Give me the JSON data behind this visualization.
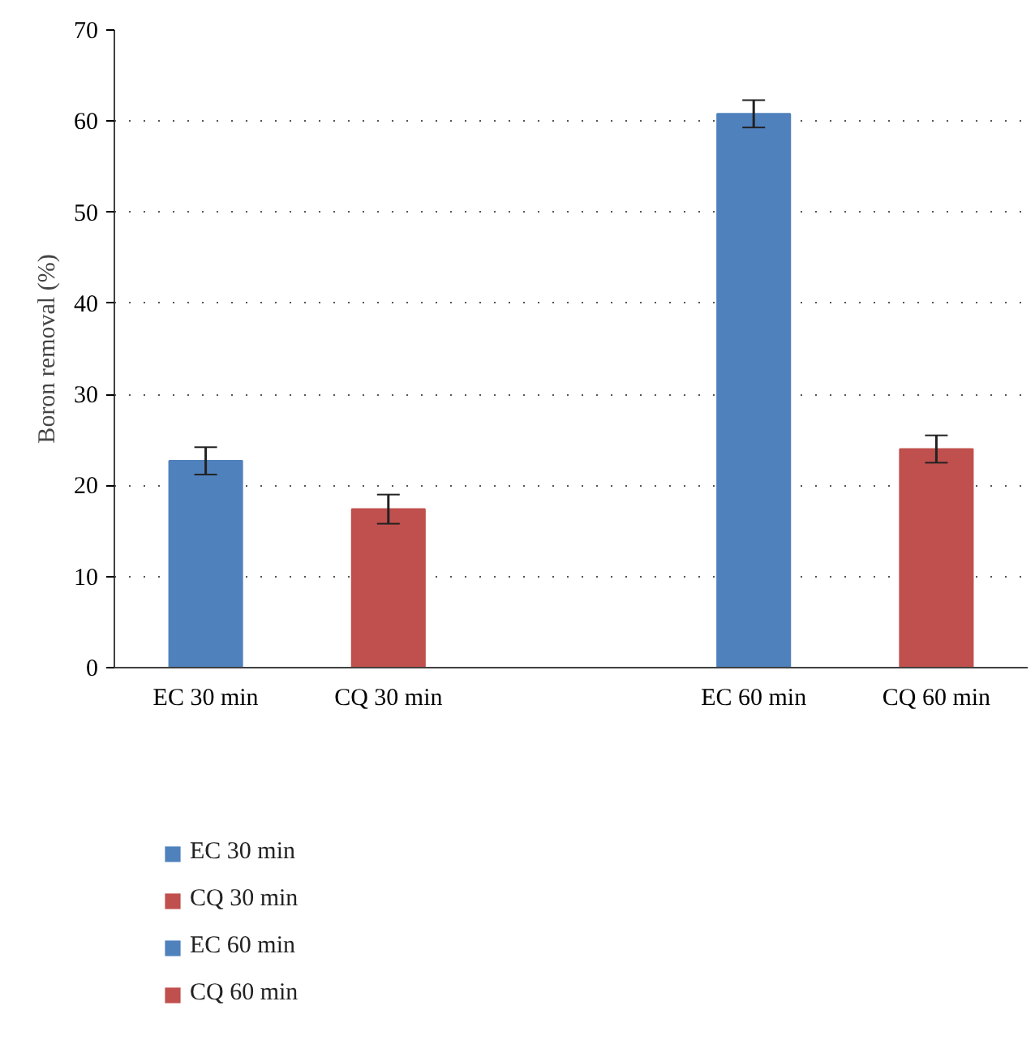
{
  "chart_data": {
    "type": "bar",
    "ylabel": "Boron removal (%)",
    "categories": [
      "EC 30 min",
      "CQ 30 min",
      null,
      "EC 60 min",
      "CQ 60 min"
    ],
    "series": [
      {
        "name": "EC 30 min",
        "color": "#4f81bd",
        "values": [
          22.7,
          null,
          null,
          null,
          null
        ],
        "errors": [
          1.5,
          null,
          null,
          null,
          null
        ]
      },
      {
        "name": "CQ 30 min",
        "color": "#c0504d",
        "values": [
          null,
          17.4,
          null,
          null,
          null
        ],
        "errors": [
          null,
          1.6,
          null,
          null,
          null
        ]
      },
      {
        "name": "EC 60 min",
        "color": "#4f81bd",
        "values": [
          null,
          null,
          null,
          60.8,
          null
        ],
        "errors": [
          null,
          null,
          null,
          1.5,
          null
        ]
      },
      {
        "name": "CQ 60 min",
        "color": "#c0504d",
        "values": [
          null,
          null,
          null,
          null,
          24.0
        ],
        "errors": [
          null,
          null,
          null,
          null,
          1.5
        ]
      }
    ],
    "ylim": [
      0,
      70
    ],
    "yticks": [
      0,
      10,
      20,
      30,
      40,
      50,
      60,
      70
    ],
    "grid": "y",
    "legend": "bottom"
  }
}
